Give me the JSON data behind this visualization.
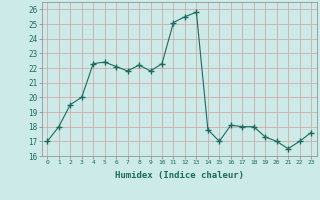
{
  "x": [
    0,
    1,
    2,
    3,
    4,
    5,
    6,
    7,
    8,
    9,
    10,
    11,
    12,
    13,
    14,
    15,
    16,
    17,
    18,
    19,
    20,
    21,
    22,
    23
  ],
  "y": [
    17.0,
    18.0,
    19.5,
    20.0,
    22.3,
    22.4,
    22.1,
    21.8,
    22.2,
    21.8,
    22.3,
    25.1,
    25.5,
    25.8,
    17.8,
    17.0,
    18.1,
    18.0,
    18.0,
    17.3,
    17.0,
    16.5,
    17.0,
    17.6
  ],
  "line_color": "#1a6b5e",
  "marker": "+",
  "marker_size": 4,
  "bg_color": "#cceae7",
  "grid_color": "#b0d4d0",
  "xlabel": "Humidex (Indice chaleur)",
  "xlim": [
    -0.5,
    23.5
  ],
  "ylim": [
    16,
    26.5
  ],
  "yticks": [
    16,
    17,
    18,
    19,
    20,
    21,
    22,
    23,
    24,
    25,
    26
  ],
  "xticks": [
    0,
    1,
    2,
    3,
    4,
    5,
    6,
    7,
    8,
    9,
    10,
    11,
    12,
    13,
    14,
    15,
    16,
    17,
    18,
    19,
    20,
    21,
    22,
    23
  ],
  "xtick_labels": [
    "0",
    "1",
    "2",
    "3",
    "4",
    "5",
    "6",
    "7",
    "8",
    "9",
    "10",
    "11",
    "12",
    "13",
    "14",
    "15",
    "16",
    "17",
    "18",
    "19",
    "20",
    "21",
    "22",
    "23"
  ]
}
